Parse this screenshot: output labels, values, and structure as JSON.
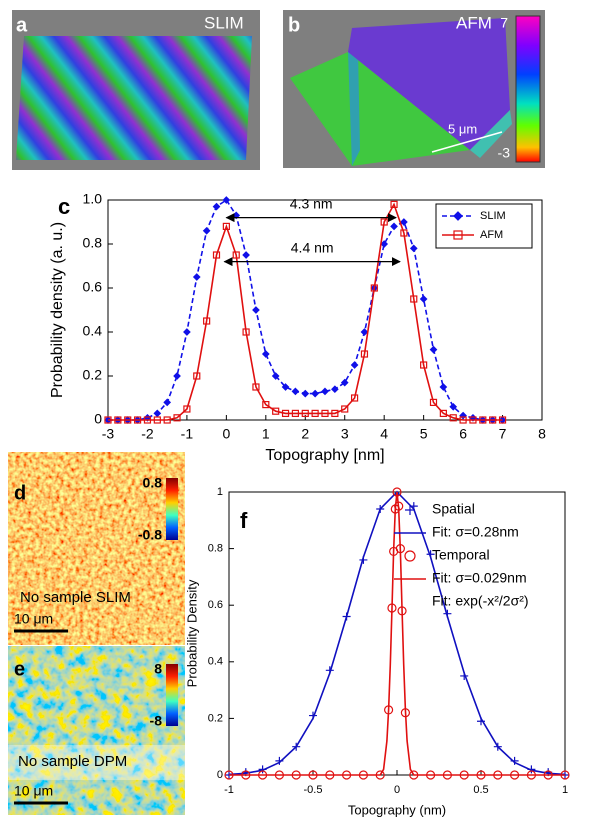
{
  "figure": {
    "a": {
      "label": "a",
      "text": "SLIM"
    },
    "b": {
      "label": "b",
      "text": "AFM",
      "colorbar": [
        7,
        -3
      ],
      "scale": "5 μm"
    },
    "d": {
      "label": "d",
      "colorbar": [
        0.8,
        -0.8
      ],
      "text": "No sample SLIM",
      "scale": "10 μm"
    },
    "e": {
      "label": "e",
      "colorbar": [
        8,
        -8
      ],
      "text": "No sample DPM",
      "scale": "10 μm"
    }
  },
  "chart_data": [
    {
      "type": "line",
      "panel": "c",
      "xlabel": "Topography [nm]",
      "ylabel": "Probability density (a. u.)",
      "xlim": [
        -3,
        8
      ],
      "ylim": [
        0,
        1
      ],
      "xticks": [
        -3,
        -2,
        -1,
        0,
        1,
        2,
        3,
        4,
        5,
        6,
        7,
        8
      ],
      "yticks": [
        0,
        0.2,
        0.4,
        0.6,
        0.8,
        {
          "value": 1,
          "label": "1.0"
        }
      ],
      "legend": "upper right",
      "x": [
        -3,
        -2.75,
        -2.5,
        -2.25,
        -2,
        -1.75,
        -1.5,
        -1.25,
        -1,
        -0.75,
        -0.5,
        -0.25,
        0,
        0.25,
        0.5,
        0.75,
        1,
        1.25,
        1.5,
        1.75,
        2,
        2.25,
        2.5,
        2.75,
        3,
        3.25,
        3.5,
        3.75,
        4,
        4.25,
        4.5,
        4.75,
        5,
        5.25,
        5.5,
        5.75,
        6,
        6.25,
        6.5,
        6.75,
        7
      ],
      "series": [
        {
          "name": "SLIM",
          "color": "#1010e8",
          "style": "dashed",
          "marker": "diamond",
          "values": [
            0,
            0,
            0,
            0,
            0.01,
            0.03,
            0.08,
            0.2,
            0.4,
            0.65,
            0.86,
            0.97,
            1.0,
            0.93,
            0.75,
            0.5,
            0.3,
            0.2,
            0.15,
            0.13,
            0.12,
            0.12,
            0.13,
            0.14,
            0.17,
            0.25,
            0.4,
            0.6,
            0.8,
            0.88,
            0.9,
            0.78,
            0.55,
            0.32,
            0.15,
            0.06,
            0.02,
            0.01,
            0,
            0,
            0
          ]
        },
        {
          "name": "AFM",
          "color": "#e01010",
          "style": "solid",
          "marker": "square",
          "values": [
            0,
            0,
            0,
            0,
            0,
            0,
            0,
            0.01,
            0.05,
            0.2,
            0.45,
            0.75,
            0.88,
            0.75,
            0.4,
            0.15,
            0.07,
            0.04,
            0.03,
            0.03,
            0.03,
            0.03,
            0.03,
            0.03,
            0.05,
            0.1,
            0.3,
            0.6,
            0.9,
            0.98,
            0.85,
            0.55,
            0.25,
            0.08,
            0.03,
            0.01,
            0,
            0,
            0,
            0,
            0
          ]
        }
      ],
      "annotations": [
        {
          "text": "4.3 nm",
          "x_start": 0,
          "x_end": 4.3,
          "y": 0.92
        },
        {
          "text": "4.4 nm",
          "x_start": -0.05,
          "x_end": 4.4,
          "y": 0.72
        }
      ]
    },
    {
      "type": "line",
      "panel": "f",
      "xlabel": "Topography (nm)",
      "ylabel": "Probability Density",
      "xlim": [
        -1,
        1
      ],
      "ylim": [
        0,
        1
      ],
      "xticks": [
        -1,
        -0.5,
        0,
        0.5,
        1
      ],
      "yticks": [
        0,
        0.2,
        0.4,
        0.6,
        0.8,
        1
      ],
      "legend": "upper right",
      "legend_note": "Fit: exp(-x²/2σ²)",
      "series": [
        {
          "name": "Spatial",
          "color": "#1010c0",
          "style": "none",
          "marker": "plus",
          "x": [
            -1,
            -0.9,
            -0.8,
            -0.7,
            -0.6,
            -0.5,
            -0.4,
            -0.3,
            -0.2,
            -0.1,
            0,
            0.1,
            0.2,
            0.3,
            0.4,
            0.5,
            0.6,
            0.7,
            0.8,
            0.9,
            1
          ],
          "values": [
            0,
            0.01,
            0.02,
            0.05,
            0.1,
            0.21,
            0.37,
            0.56,
            0.76,
            0.94,
            0.99,
            0.95,
            0.78,
            0.57,
            0.35,
            0.19,
            0.1,
            0.05,
            0.02,
            0.01,
            0
          ]
        },
        {
          "name": "Fit: σ=0.28nm",
          "color": "#1010c0",
          "style": "solid",
          "marker": "none",
          "x": [
            -1,
            -0.9,
            -0.8,
            -0.7,
            -0.6,
            -0.5,
            -0.4,
            -0.3,
            -0.2,
            -0.1,
            0,
            0.1,
            0.2,
            0.3,
            0.4,
            0.5,
            0.6,
            0.7,
            0.8,
            0.9,
            1
          ],
          "values": [
            0.002,
            0.006,
            0.017,
            0.044,
            0.1,
            0.2,
            0.36,
            0.56,
            0.77,
            0.94,
            1,
            0.94,
            0.77,
            0.56,
            0.36,
            0.2,
            0.1,
            0.044,
            0.017,
            0.006,
            0.002
          ]
        },
        {
          "name": "Temporal",
          "color": "#e01010",
          "style": "none",
          "marker": "circle",
          "x": [
            -1,
            -0.9,
            -0.8,
            -0.7,
            -0.6,
            -0.5,
            -0.4,
            -0.3,
            -0.2,
            -0.1,
            -0.05,
            -0.03,
            -0.02,
            -0.01,
            0,
            0.01,
            0.02,
            0.03,
            0.05,
            0.1,
            0.2,
            0.3,
            0.4,
            0.5,
            0.6,
            0.7,
            0.8,
            0.9,
            1
          ],
          "values": [
            0,
            0,
            0,
            0,
            0,
            0,
            0,
            0,
            0,
            0,
            0.23,
            0.59,
            0.79,
            0.94,
            1,
            0.95,
            0.8,
            0.58,
            0.22,
            0,
            0,
            0,
            0,
            0,
            0,
            0,
            0,
            0,
            0
          ]
        },
        {
          "name": "Fit:  σ=0.029nm",
          "color": "#e01010",
          "style": "solid",
          "marker": "none",
          "x": [
            -1,
            -0.1,
            -0.08,
            -0.06,
            -0.05,
            -0.04,
            -0.03,
            -0.02,
            -0.01,
            0,
            0.01,
            0.02,
            0.03,
            0.04,
            0.05,
            0.06,
            0.08,
            0.1,
            1
          ],
          "values": [
            0,
            0,
            0.02,
            0.12,
            0.23,
            0.39,
            0.59,
            0.79,
            0.94,
            1,
            0.94,
            0.79,
            0.59,
            0.39,
            0.23,
            0.12,
            0.02,
            0,
            0
          ]
        }
      ]
    }
  ]
}
